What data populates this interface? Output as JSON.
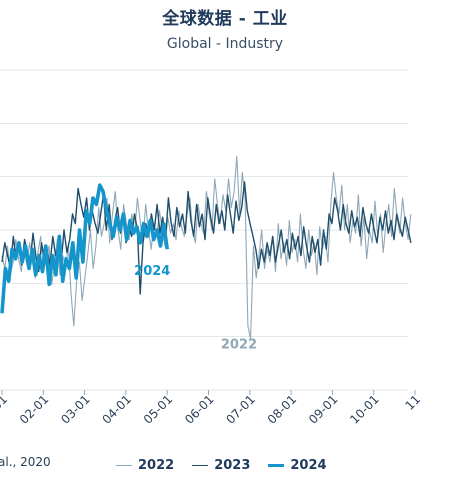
{
  "title": "全球数据 - 工业",
  "subtitle": "Global - Industry",
  "footnote": "al., 2020",
  "colors": {
    "s2022": "#8fa8b8",
    "s2023": "#1f4e6b",
    "s2024": "#1496cc",
    "grid": "#e3e8ed"
  },
  "chart_data": {
    "type": "line",
    "title": "全球数据 - 工业",
    "subtitle": "Global - Industry",
    "x_ticks": [
      "01",
      "02-01",
      "03-01",
      "04-01",
      "05-01",
      "06-01",
      "07-01",
      "08-01",
      "09-01",
      "10-01",
      "11"
    ],
    "legend_placement": "bottom",
    "grid": true,
    "annotations": [
      {
        "text": "2024",
        "series": "2024",
        "x_month": 4.2,
        "y": 0.36
      },
      {
        "text": "2022",
        "series": "2022",
        "x_month": 6.3,
        "y": 0.13
      }
    ],
    "series": [
      {
        "name": "2022",
        "x_start_month": 1.0,
        "x_end_month": 10.9,
        "values": [
          0.42,
          0.38,
          0.45,
          0.36,
          0.4,
          0.47,
          0.41,
          0.37,
          0.44,
          0.39,
          0.46,
          0.4,
          0.35,
          0.43,
          0.48,
          0.37,
          0.41,
          0.45,
          0.33,
          0.39,
          0.47,
          0.36,
          0.42,
          0.38,
          0.45,
          0.3,
          0.2,
          0.34,
          0.4,
          0.28,
          0.35,
          0.42,
          0.5,
          0.38,
          0.45,
          0.57,
          0.48,
          0.52,
          0.6,
          0.46,
          0.55,
          0.62,
          0.5,
          0.44,
          0.58,
          0.52,
          0.47,
          0.55,
          0.49,
          0.6,
          0.53,
          0.46,
          0.58,
          0.5,
          0.44,
          0.52,
          0.48,
          0.56,
          0.5,
          0.45,
          0.54,
          0.49,
          0.52,
          0.47,
          0.56,
          0.51,
          0.48,
          0.55,
          0.6,
          0.5,
          0.46,
          0.58,
          0.52,
          0.49,
          0.62,
          0.55,
          0.5,
          0.66,
          0.58,
          0.52,
          0.61,
          0.56,
          0.66,
          0.57,
          0.62,
          0.73,
          0.55,
          0.68,
          0.6,
          0.2,
          0.16,
          0.45,
          0.35,
          0.42,
          0.5,
          0.38,
          0.44,
          0.4,
          0.48,
          0.37,
          0.52,
          0.41,
          0.46,
          0.39,
          0.53,
          0.43,
          0.47,
          0.4,
          0.55,
          0.44,
          0.38,
          0.5,
          0.42,
          0.46,
          0.36,
          0.51,
          0.44,
          0.48,
          0.4,
          0.58,
          0.68,
          0.6,
          0.55,
          0.64,
          0.5,
          0.58,
          0.46,
          0.53,
          0.49,
          0.61,
          0.45,
          0.54,
          0.41,
          0.5,
          0.46,
          0.59,
          0.48,
          0.55,
          0.43,
          0.52,
          0.58,
          0.48,
          0.63,
          0.54,
          0.49,
          0.6,
          0.52,
          0.47,
          0.55
        ]
      },
      {
        "name": "2023",
        "x_start_month": 1.0,
        "x_end_month": 10.9,
        "values": [
          0.4,
          0.46,
          0.42,
          0.38,
          0.48,
          0.41,
          0.44,
          0.39,
          0.47,
          0.43,
          0.4,
          0.49,
          0.42,
          0.37,
          0.46,
          0.41,
          0.44,
          0.39,
          0.48,
          0.42,
          0.45,
          0.4,
          0.5,
          0.43,
          0.47,
          0.55,
          0.52,
          0.63,
          0.58,
          0.54,
          0.6,
          0.5,
          0.56,
          0.52,
          0.49,
          0.55,
          0.61,
          0.5,
          0.58,
          0.47,
          0.53,
          0.57,
          0.49,
          0.54,
          0.46,
          0.51,
          0.48,
          0.55,
          0.5,
          0.3,
          0.46,
          0.52,
          0.48,
          0.55,
          0.5,
          0.58,
          0.49,
          0.54,
          0.47,
          0.6,
          0.52,
          0.48,
          0.57,
          0.51,
          0.55,
          0.49,
          0.62,
          0.53,
          0.48,
          0.58,
          0.51,
          0.55,
          0.47,
          0.6,
          0.54,
          0.49,
          0.58,
          0.52,
          0.56,
          0.5,
          0.61,
          0.55,
          0.49,
          0.59,
          0.53,
          0.57,
          0.65,
          0.56,
          0.52,
          0.48,
          0.44,
          0.38,
          0.44,
          0.4,
          0.46,
          0.42,
          0.48,
          0.4,
          0.45,
          0.5,
          0.43,
          0.47,
          0.41,
          0.49,
          0.44,
          0.48,
          0.42,
          0.51,
          0.45,
          0.4,
          0.48,
          0.43,
          0.47,
          0.39,
          0.5,
          0.44,
          0.55,
          0.52,
          0.6,
          0.56,
          0.5,
          0.58,
          0.52,
          0.49,
          0.56,
          0.51,
          0.54,
          0.48,
          0.57,
          0.52,
          0.49,
          0.55,
          0.5,
          0.46,
          0.54,
          0.5,
          0.56,
          0.49,
          0.53,
          0.47,
          0.55,
          0.51,
          0.48,
          0.54,
          0.5,
          0.46
        ]
      },
      {
        "name": "2024",
        "x_start_month": 1.0,
        "x_end_month": 5.0,
        "values": [
          0.24,
          0.38,
          0.34,
          0.44,
          0.41,
          0.46,
          0.4,
          0.45,
          0.38,
          0.44,
          0.36,
          0.42,
          0.37,
          0.45,
          0.33,
          0.42,
          0.36,
          0.48,
          0.34,
          0.41,
          0.38,
          0.46,
          0.35,
          0.5,
          0.4,
          0.56,
          0.52,
          0.6,
          0.58,
          0.64,
          0.62,
          0.56,
          0.52,
          0.48,
          0.54,
          0.5,
          0.55,
          0.47,
          0.53,
          0.49,
          0.51,
          0.46,
          0.52,
          0.48,
          0.53,
          0.47,
          0.5,
          0.45,
          0.52,
          0.44
        ]
      }
    ]
  },
  "legend": [
    {
      "name": "2022",
      "color": "#8fa8b8",
      "width": 1.2
    },
    {
      "name": "2023",
      "color": "#1f4e6b",
      "width": 1.6
    },
    {
      "name": "2024",
      "color": "#1496cc",
      "width": 3.5
    }
  ]
}
